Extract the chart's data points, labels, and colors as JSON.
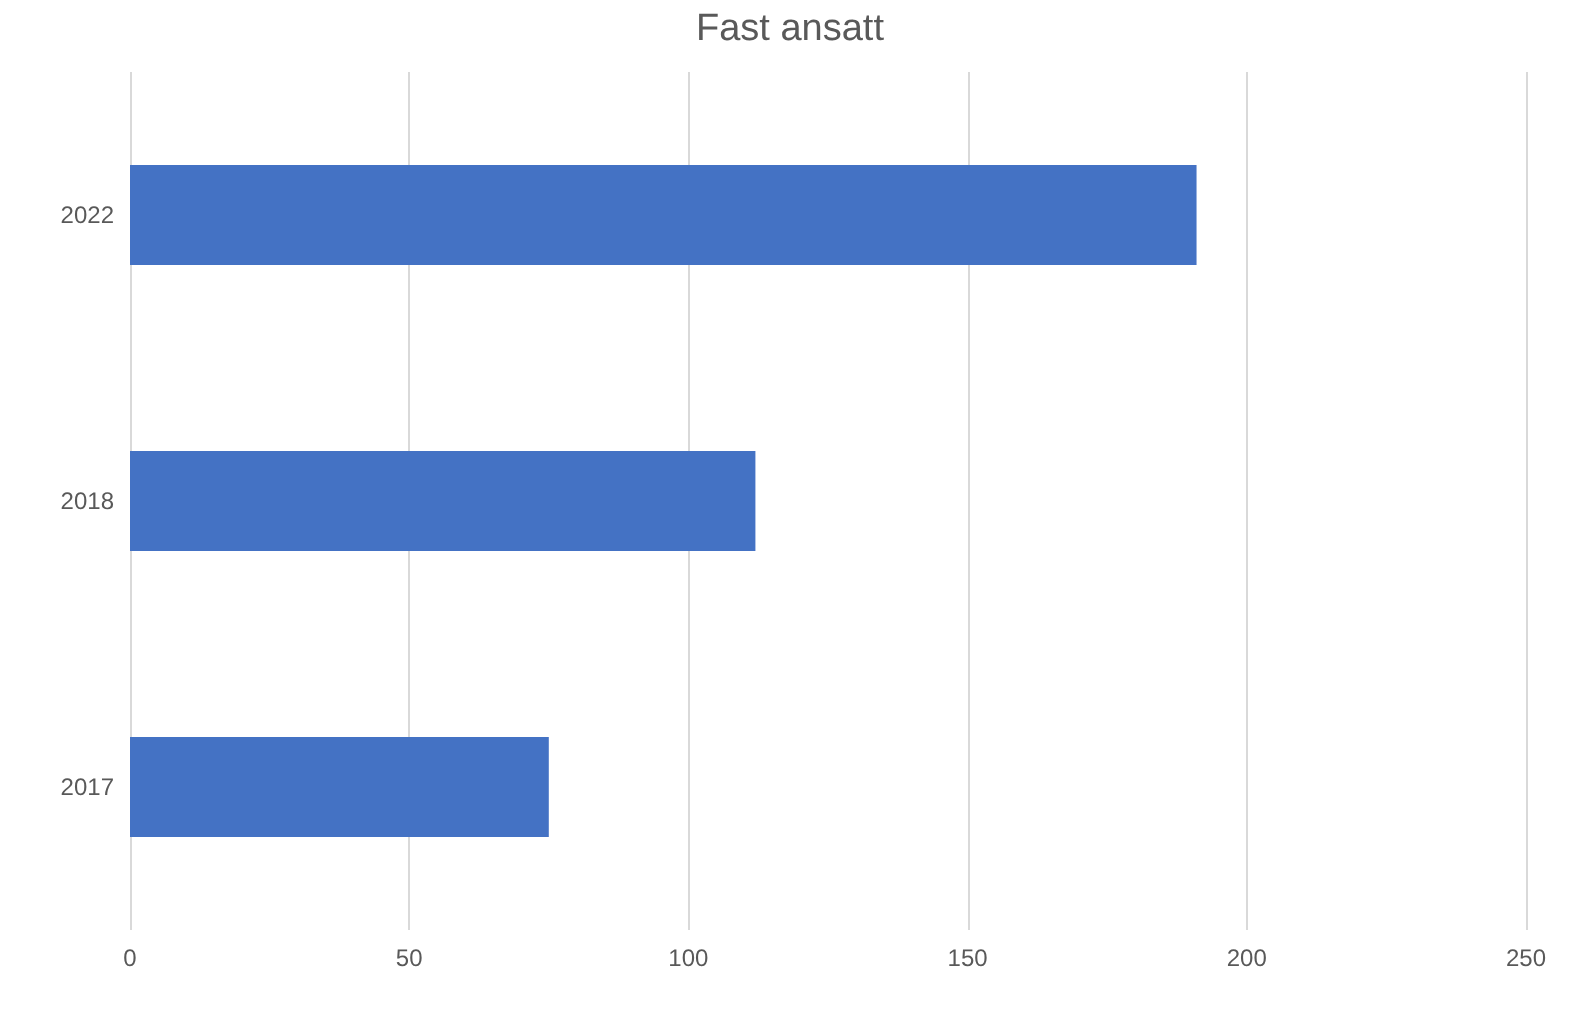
{
  "chart_data": {
    "type": "bar",
    "orientation": "horizontal",
    "title": "Fast ansatt",
    "categories": [
      "2022",
      "2018",
      "2017"
    ],
    "values": [
      191,
      112,
      75
    ],
    "color": "#4472c4",
    "xlim": [
      0,
      250
    ],
    "xticks": [
      0,
      50,
      100,
      150,
      200,
      250
    ],
    "grid": "x"
  }
}
